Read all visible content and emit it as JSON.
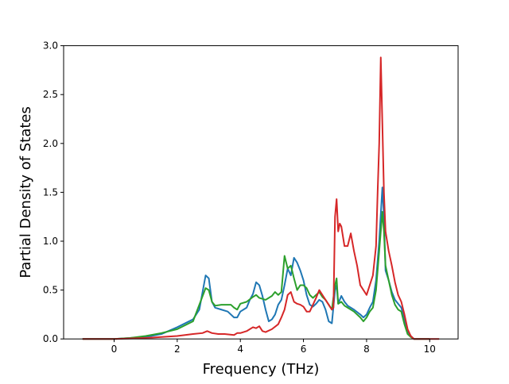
{
  "chart_data": {
    "type": "line",
    "title": "",
    "xlabel": "Frequency (THz)",
    "ylabel": "Partial Density of States",
    "xlim": [
      -1.6,
      10.9
    ],
    "ylim": [
      0.0,
      3.0
    ],
    "x_ticks": [
      0,
      2,
      4,
      6,
      8,
      10
    ],
    "x_tick_labels": [
      "0",
      "2",
      "4",
      "6",
      "8",
      "10"
    ],
    "y_ticks": [
      0.0,
      0.5,
      1.0,
      1.5,
      2.0,
      2.5,
      3.0
    ],
    "y_tick_labels": [
      "0.0",
      "0.5",
      "1.0",
      "1.5",
      "2.0",
      "2.5",
      "3.0"
    ],
    "grid": false,
    "legend": "none",
    "series": [
      {
        "color": "#1f77b4",
        "x": [
          -1.0,
          0.0,
          0.5,
          1.0,
          1.5,
          2.0,
          2.5,
          2.7,
          2.9,
          3.0,
          3.1,
          3.2,
          3.4,
          3.6,
          3.8,
          3.9,
          4.0,
          4.2,
          4.3,
          4.4,
          4.5,
          4.6,
          4.7,
          4.8,
          4.9,
          5.0,
          5.1,
          5.2,
          5.3,
          5.4,
          5.5,
          5.6,
          5.7,
          5.8,
          5.9,
          6.0,
          6.1,
          6.2,
          6.3,
          6.4,
          6.5,
          6.6,
          6.7,
          6.8,
          6.9,
          7.0,
          7.05,
          7.1,
          7.2,
          7.3,
          7.4,
          7.6,
          7.8,
          7.9,
          8.0,
          8.1,
          8.2,
          8.3,
          8.4,
          8.5,
          8.55,
          8.6,
          8.7,
          8.8,
          8.9,
          9.0,
          9.1,
          9.2,
          9.3,
          9.4,
          9.5,
          10.0
        ],
        "y": [
          0.0,
          0.0,
          0.01,
          0.02,
          0.05,
          0.12,
          0.2,
          0.3,
          0.65,
          0.62,
          0.38,
          0.32,
          0.3,
          0.28,
          0.22,
          0.22,
          0.28,
          0.32,
          0.4,
          0.46,
          0.58,
          0.55,
          0.44,
          0.3,
          0.18,
          0.2,
          0.25,
          0.35,
          0.4,
          0.55,
          0.72,
          0.65,
          0.83,
          0.78,
          0.7,
          0.6,
          0.45,
          0.35,
          0.33,
          0.36,
          0.4,
          0.38,
          0.3,
          0.18,
          0.16,
          0.5,
          0.55,
          0.36,
          0.44,
          0.38,
          0.34,
          0.3,
          0.25,
          0.22,
          0.25,
          0.32,
          0.38,
          0.6,
          1.0,
          1.55,
          1.25,
          0.7,
          0.6,
          0.48,
          0.4,
          0.36,
          0.32,
          0.2,
          0.08,
          0.03,
          0.0,
          0.0
        ]
      },
      {
        "color": "#2ca02c",
        "x": [
          -1.0,
          0.0,
          0.5,
          1.0,
          1.5,
          2.0,
          2.5,
          2.7,
          2.9,
          3.0,
          3.1,
          3.2,
          3.4,
          3.6,
          3.7,
          3.8,
          3.9,
          4.0,
          4.2,
          4.4,
          4.5,
          4.6,
          4.8,
          5.0,
          5.1,
          5.2,
          5.3,
          5.4,
          5.5,
          5.6,
          5.7,
          5.8,
          5.9,
          6.0,
          6.1,
          6.2,
          6.3,
          6.4,
          6.5,
          6.6,
          6.7,
          6.8,
          6.9,
          7.0,
          7.05,
          7.1,
          7.2,
          7.3,
          7.4,
          7.6,
          7.8,
          7.9,
          8.0,
          8.1,
          8.2,
          8.3,
          8.4,
          8.5,
          8.55,
          8.6,
          8.7,
          8.8,
          8.9,
          9.0,
          9.1,
          9.2,
          9.3,
          9.4,
          9.5,
          10.0
        ],
        "y": [
          0.0,
          0.0,
          0.01,
          0.03,
          0.06,
          0.1,
          0.18,
          0.35,
          0.52,
          0.5,
          0.38,
          0.34,
          0.35,
          0.35,
          0.35,
          0.32,
          0.3,
          0.36,
          0.38,
          0.43,
          0.45,
          0.42,
          0.4,
          0.44,
          0.48,
          0.45,
          0.48,
          0.85,
          0.72,
          0.75,
          0.62,
          0.5,
          0.55,
          0.55,
          0.52,
          0.45,
          0.42,
          0.45,
          0.48,
          0.43,
          0.4,
          0.35,
          0.3,
          0.55,
          0.62,
          0.36,
          0.38,
          0.34,
          0.32,
          0.28,
          0.22,
          0.18,
          0.22,
          0.28,
          0.32,
          0.5,
          0.9,
          1.3,
          1.1,
          0.75,
          0.6,
          0.45,
          0.35,
          0.3,
          0.28,
          0.15,
          0.05,
          0.02,
          0.0,
          0.0
        ]
      },
      {
        "color": "#d62728",
        "x": [
          -1.0,
          0.0,
          1.0,
          1.5,
          2.0,
          2.5,
          2.8,
          2.95,
          3.1,
          3.3,
          3.5,
          3.8,
          3.9,
          4.0,
          4.2,
          4.4,
          4.5,
          4.6,
          4.7,
          4.8,
          5.0,
          5.2,
          5.3,
          5.4,
          5.5,
          5.6,
          5.7,
          5.8,
          5.9,
          6.0,
          6.1,
          6.2,
          6.3,
          6.4,
          6.5,
          6.6,
          6.7,
          6.8,
          6.9,
          6.95,
          7.0,
          7.05,
          7.1,
          7.15,
          7.2,
          7.3,
          7.4,
          7.5,
          7.6,
          7.7,
          7.8,
          7.9,
          8.0,
          8.1,
          8.2,
          8.3,
          8.35,
          8.4,
          8.45,
          8.5,
          8.55,
          8.6,
          8.7,
          8.8,
          8.9,
          9.0,
          9.1,
          9.2,
          9.3,
          9.4,
          9.5,
          10.3
        ],
        "y": [
          0.0,
          0.0,
          0.01,
          0.02,
          0.03,
          0.05,
          0.06,
          0.08,
          0.06,
          0.05,
          0.05,
          0.04,
          0.06,
          0.06,
          0.08,
          0.12,
          0.11,
          0.13,
          0.08,
          0.07,
          0.1,
          0.15,
          0.22,
          0.3,
          0.45,
          0.48,
          0.38,
          0.36,
          0.35,
          0.33,
          0.28,
          0.28,
          0.35,
          0.42,
          0.5,
          0.45,
          0.4,
          0.35,
          0.3,
          0.32,
          1.25,
          1.43,
          1.1,
          1.18,
          1.15,
          0.95,
          0.95,
          1.08,
          0.9,
          0.75,
          0.55,
          0.5,
          0.45,
          0.55,
          0.65,
          0.95,
          1.5,
          2.0,
          2.88,
          2.2,
          1.5,
          1.1,
          0.9,
          0.75,
          0.58,
          0.45,
          0.38,
          0.25,
          0.1,
          0.03,
          0.0,
          0.0
        ]
      }
    ]
  }
}
